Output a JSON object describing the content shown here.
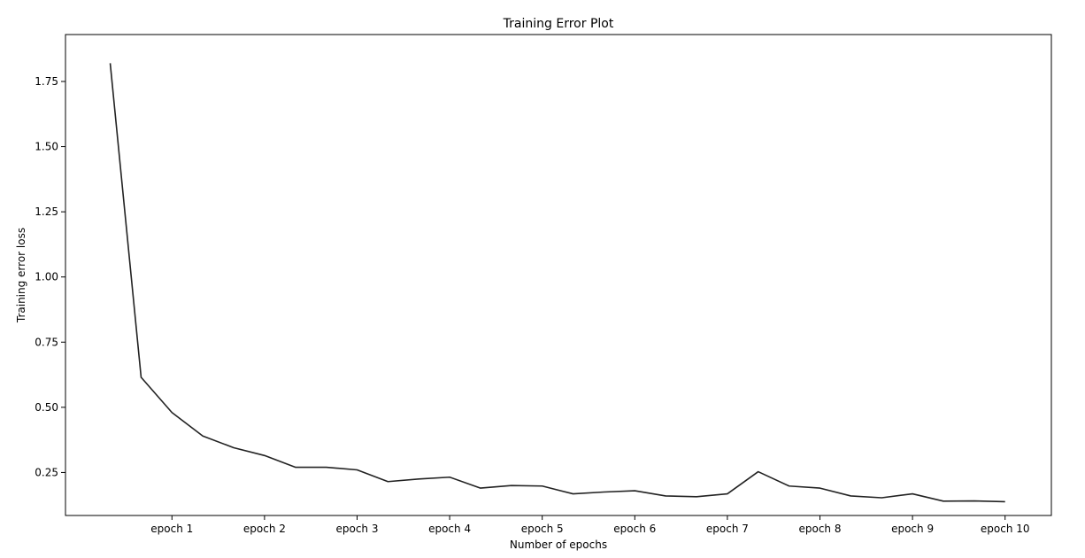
{
  "chart_data": {
    "type": "line",
    "title": "Training Error Plot",
    "xlabel": "Number of epochs",
    "ylabel": "Training error loss",
    "x_tick_labels": [
      "epoch 1",
      "epoch 2",
      "epoch 3",
      "epoch 4",
      "epoch 5",
      "epoch 6",
      "epoch 7",
      "epoch 8",
      "epoch 9",
      "epoch 10"
    ],
    "x_tick_positions": [
      1,
      2,
      3,
      4,
      5,
      6,
      7,
      8,
      9,
      10
    ],
    "xlim": [
      -0.15,
      10.5
    ],
    "y_ticks": [
      0.25,
      0.5,
      0.75,
      1.0,
      1.25,
      1.5,
      1.75
    ],
    "y_tick_labels": [
      "0.25",
      "0.50",
      "0.75",
      "1.00",
      "1.25",
      "1.50",
      "1.75"
    ],
    "ylim": [
      0.085,
      1.93
    ],
    "grid": false,
    "color": "#222222",
    "series": [
      {
        "x": [
          0.333,
          0.667,
          1.0,
          1.333,
          1.667,
          2.0,
          2.333,
          2.667,
          3.0,
          3.333,
          3.667,
          4.0,
          4.333,
          4.667,
          5.0,
          5.333,
          5.667,
          6.0,
          6.333,
          6.667,
          7.0,
          7.333,
          7.667,
          8.0,
          8.333,
          8.667,
          9.0,
          9.333,
          9.667,
          10.0
        ],
        "values": [
          1.82,
          0.615,
          0.48,
          0.39,
          0.345,
          0.315,
          0.27,
          0.27,
          0.26,
          0.215,
          0.225,
          0.232,
          0.19,
          0.2,
          0.198,
          0.168,
          0.175,
          0.18,
          0.16,
          0.157,
          0.168,
          0.253,
          0.198,
          0.19,
          0.16,
          0.153,
          0.168,
          0.14,
          0.141,
          0.138
        ]
      }
    ]
  }
}
